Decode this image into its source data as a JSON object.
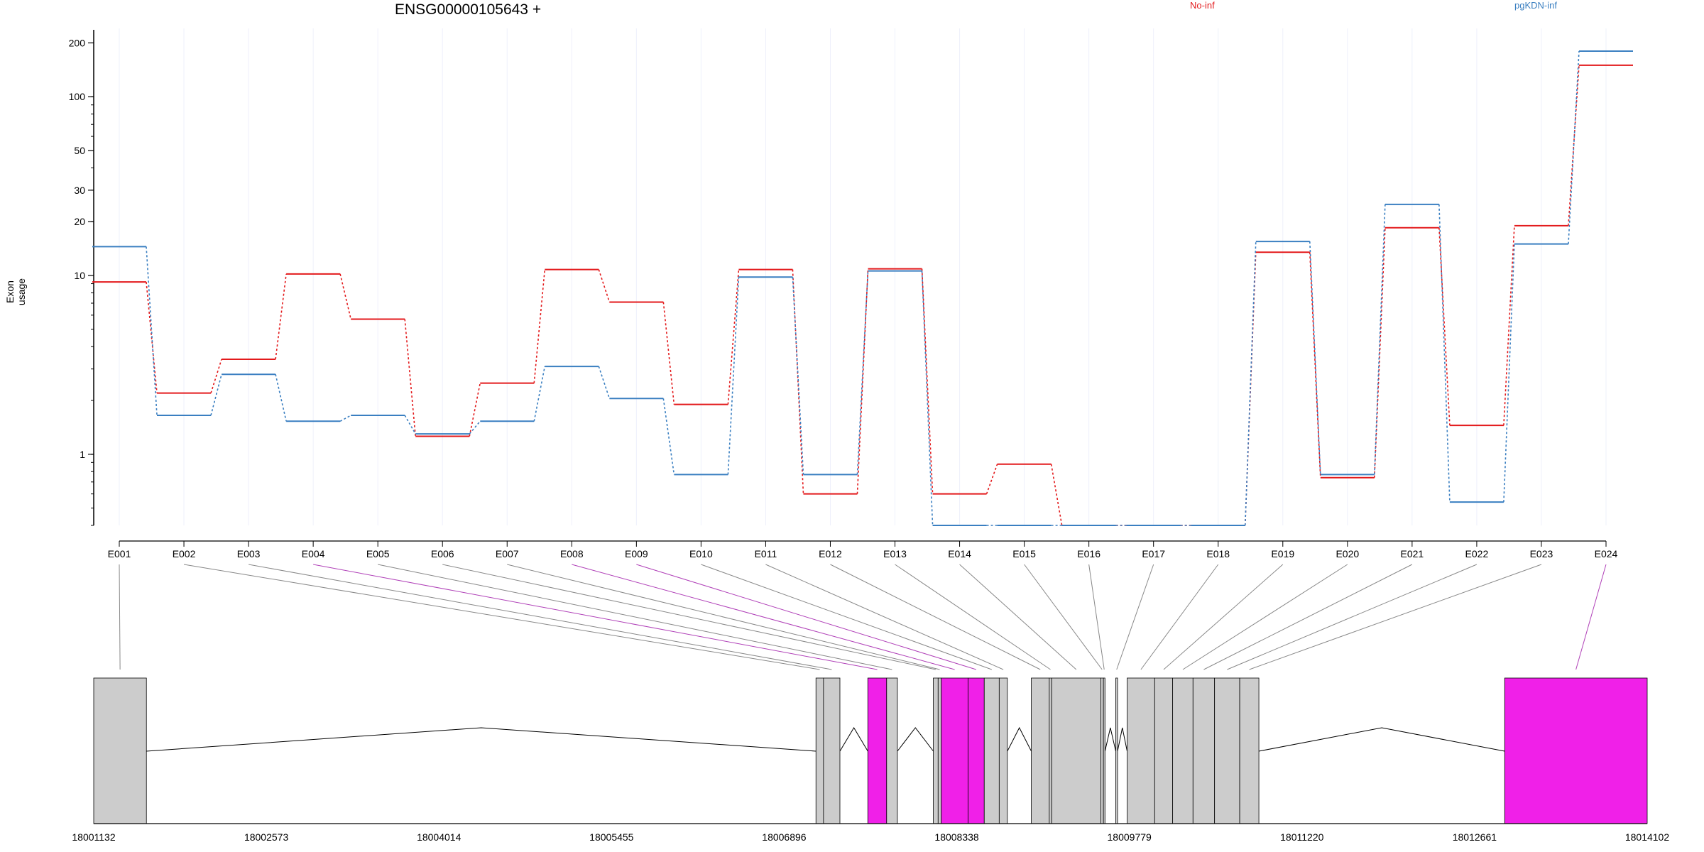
{
  "chart_data": {
    "type": "line",
    "title": "ENSG00000105643 +",
    "ylabel": "Exon usage",
    "xlabel": "",
    "yscale": "log",
    "ylim": [
      0.4,
      220
    ],
    "yticks": [
      1,
      10,
      20,
      30,
      50,
      100,
      200
    ],
    "grid": "vertical",
    "legend": "top",
    "categories": [
      "E001",
      "E002",
      "E003",
      "E004",
      "E005",
      "E006",
      "E007",
      "E008",
      "E009",
      "E010",
      "E011",
      "E012",
      "E013",
      "E014",
      "E015",
      "E016",
      "E017",
      "E018",
      "E019",
      "E020",
      "E021",
      "E022",
      "E023",
      "E024"
    ],
    "series": [
      {
        "name": "No-inf",
        "color": "#e31a1c",
        "values": [
          9.2,
          2.2,
          3.4,
          10.2,
          5.7,
          1.26,
          2.5,
          10.8,
          7.1,
          1.9,
          10.8,
          0.6,
          10.9,
          0.6,
          0.88,
          0.4,
          0.4,
          0.4,
          13.5,
          0.74,
          18.5,
          1.45,
          19.0,
          150
        ]
      },
      {
        "name": "pgKDN-inf",
        "color": "#3a7fc1",
        "values": [
          14.5,
          1.65,
          2.8,
          1.53,
          1.65,
          1.3,
          1.53,
          3.1,
          2.05,
          0.77,
          9.8,
          0.77,
          10.6,
          0.4,
          0.4,
          0.4,
          0.4,
          0.4,
          15.5,
          0.77,
          25.0,
          0.54,
          15.0,
          180
        ]
      }
    ],
    "gene_model": {
      "xticks": [
        "18001132",
        "18002573",
        "18004014",
        "18005455",
        "18006896",
        "18008338",
        "18009779",
        "18011220",
        "18012661",
        "18014102"
      ],
      "range": [
        18001132,
        18014102
      ],
      "exons": [
        {
          "id": "E001",
          "start": 18001132,
          "end": 18001572,
          "highlight": false
        },
        {
          "id": "E002",
          "start": 18007162,
          "end": 18007225,
          "highlight": false
        },
        {
          "id": "E003",
          "start": 18007225,
          "end": 18007362,
          "highlight": false
        },
        {
          "id": "E004",
          "start": 18007595,
          "end": 18007752,
          "highlight": true
        },
        {
          "id": "E005",
          "start": 18007752,
          "end": 18007842,
          "highlight": false
        },
        {
          "id": "E006",
          "start": 18008142,
          "end": 18008182,
          "highlight": false
        },
        {
          "id": "E007",
          "start": 18008182,
          "end": 18008208,
          "highlight": false
        },
        {
          "id": "E008",
          "start": 18008208,
          "end": 18008432,
          "highlight": true
        },
        {
          "id": "E009",
          "start": 18008432,
          "end": 18008567,
          "highlight": true
        },
        {
          "id": "E010",
          "start": 18008567,
          "end": 18008692,
          "highlight": false
        },
        {
          "id": "E011",
          "start": 18008692,
          "end": 18008760,
          "highlight": false
        },
        {
          "id": "E012",
          "start": 18008960,
          "end": 18009110,
          "highlight": false
        },
        {
          "id": "E013",
          "start": 18009110,
          "end": 18009130,
          "highlight": false
        },
        {
          "id": "E014",
          "start": 18009130,
          "end": 18009540,
          "highlight": false
        },
        {
          "id": "E015",
          "start": 18009540,
          "end": 18009562,
          "highlight": false
        },
        {
          "id": "E016",
          "start": 18009562,
          "end": 18009575,
          "highlight": false
        },
        {
          "id": "E017",
          "start": 18009665,
          "end": 18009680,
          "highlight": false
        },
        {
          "id": "E018",
          "start": 18009760,
          "end": 18009990,
          "highlight": false
        },
        {
          "id": "E019",
          "start": 18009990,
          "end": 18010140,
          "highlight": false
        },
        {
          "id": "E020",
          "start": 18010140,
          "end": 18010310,
          "highlight": false
        },
        {
          "id": "E021",
          "start": 18010310,
          "end": 18010490,
          "highlight": false
        },
        {
          "id": "E022",
          "start": 18010490,
          "end": 18010700,
          "highlight": false
        },
        {
          "id": "E023",
          "start": 18010700,
          "end": 18010860,
          "highlight": false
        },
        {
          "id": "E024",
          "start": 18012912,
          "end": 18014102,
          "highlight": true
        }
      ]
    }
  }
}
